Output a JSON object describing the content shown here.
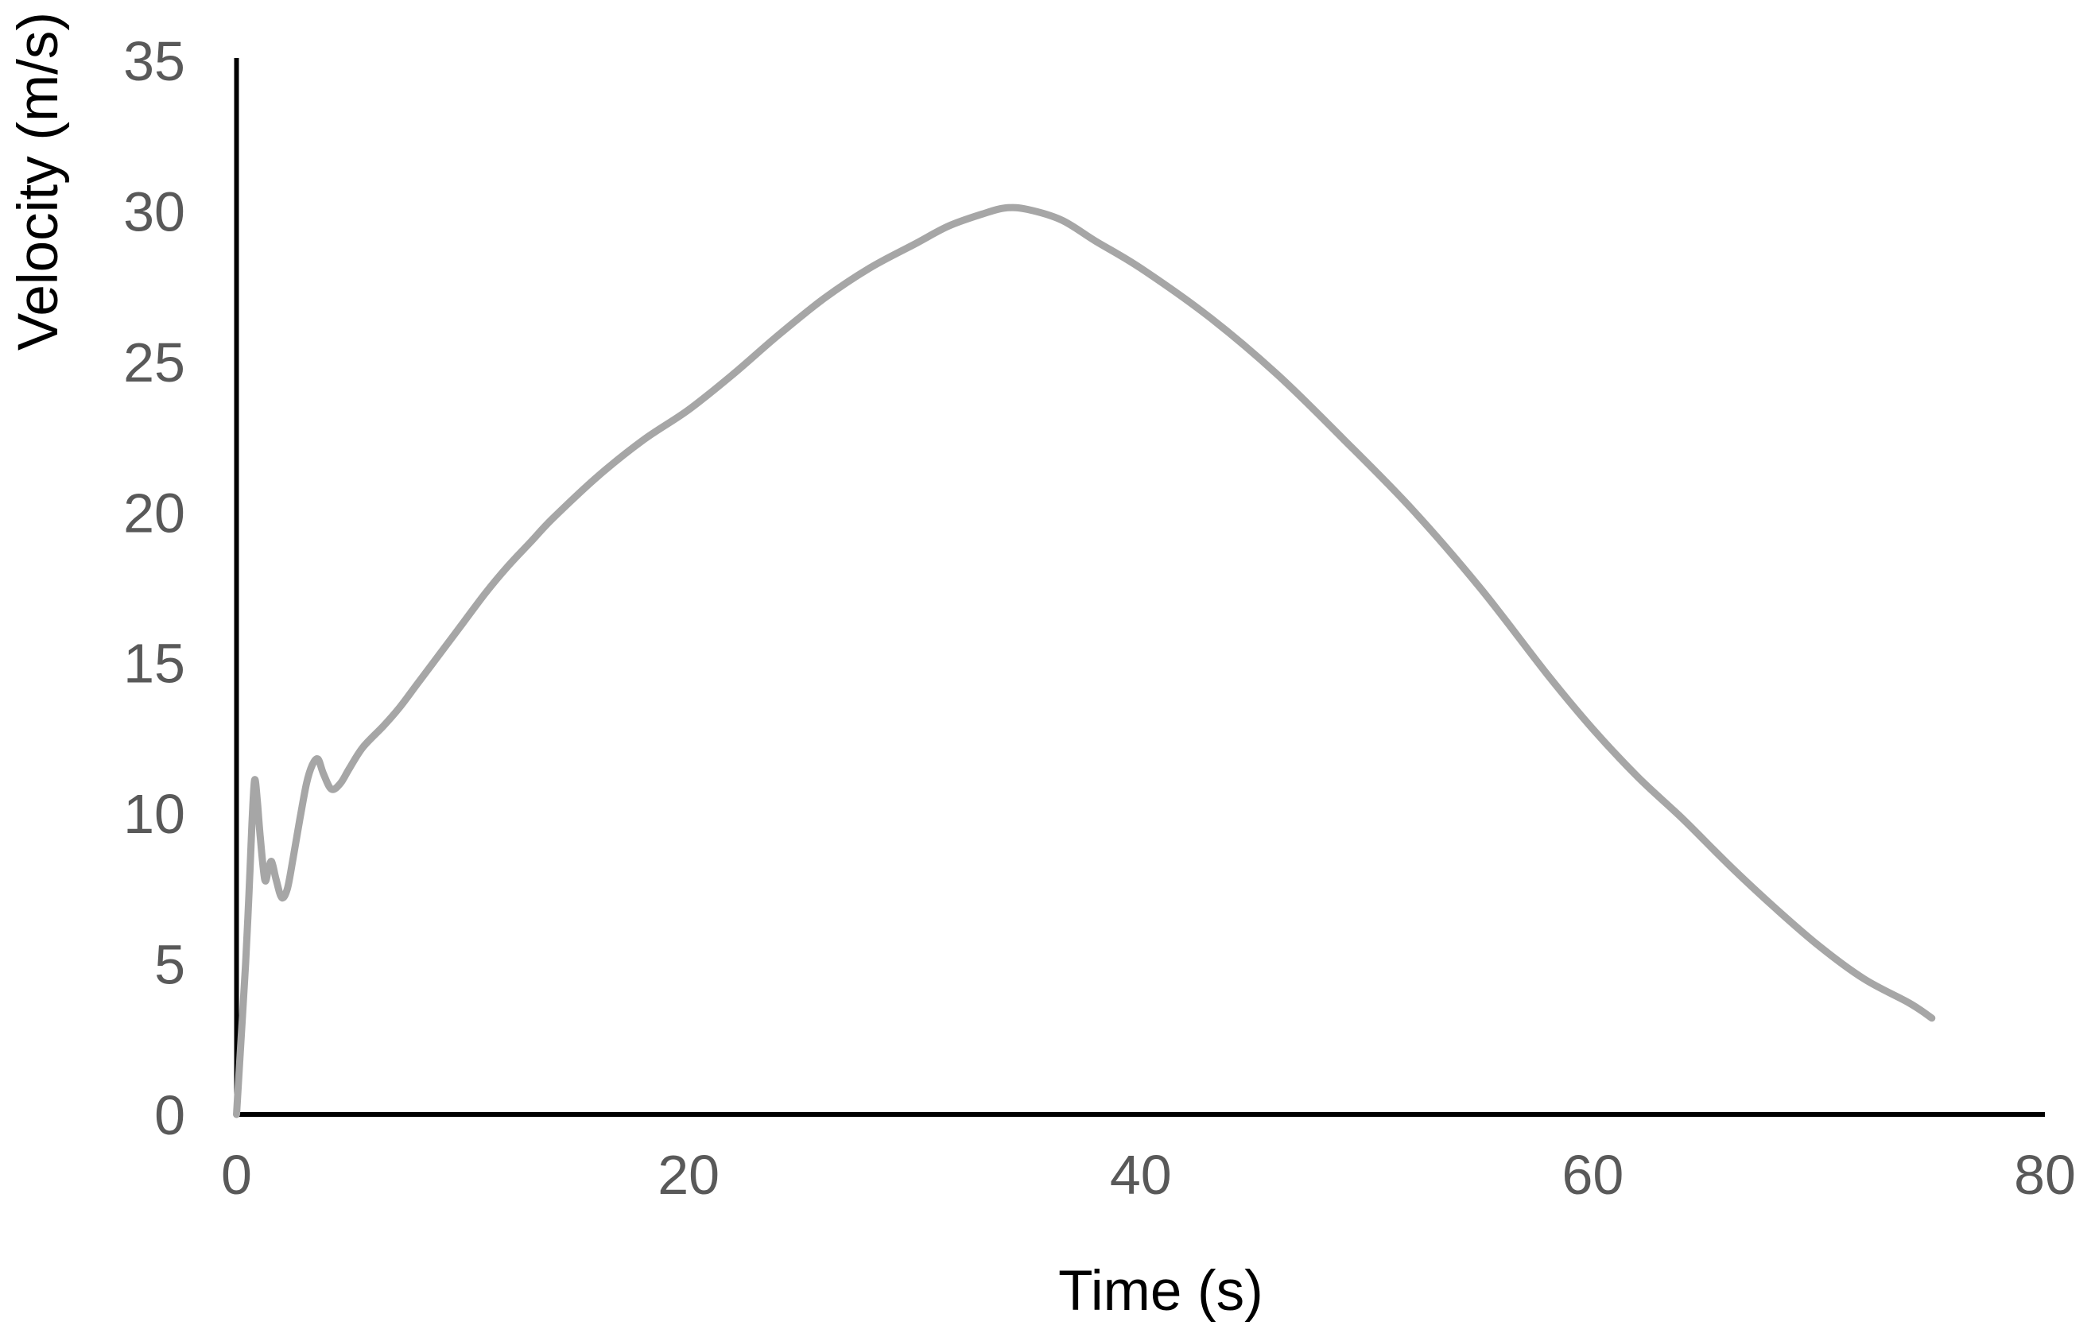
{
  "page": {
    "background_color": "#ffffff"
  },
  "chart_data": {
    "type": "line",
    "title": "",
    "xlabel": "Time (s)",
    "ylabel": "Velocity (m/s)",
    "xlim": [
      0,
      80
    ],
    "ylim": [
      0,
      35
    ],
    "x_ticks": [
      0,
      20,
      40,
      60,
      80
    ],
    "y_ticks": [
      0,
      5,
      10,
      15,
      20,
      25,
      30,
      35
    ],
    "grid": false,
    "legend_position": "none",
    "axis_color": "#000000",
    "tick_label_color": "#595959",
    "axis_title_color": "#000000",
    "series": [
      {
        "name": "Velocity",
        "color": "#a6a6a6",
        "stroke_width": 9,
        "points": [
          [
            0,
            0
          ],
          [
            0.2,
            2.5
          ],
          [
            0.4,
            5.0
          ],
          [
            0.55,
            7.3
          ],
          [
            0.68,
            9.6
          ],
          [
            0.8,
            11.1
          ],
          [
            0.92,
            10.4
          ],
          [
            1.05,
            9.2
          ],
          [
            1.25,
            7.8
          ],
          [
            1.4,
            8.1
          ],
          [
            1.55,
            8.4
          ],
          [
            1.75,
            7.8
          ],
          [
            2.0,
            7.2
          ],
          [
            2.25,
            7.5
          ],
          [
            2.5,
            8.5
          ],
          [
            2.8,
            9.8
          ],
          [
            3.1,
            11.0
          ],
          [
            3.35,
            11.6
          ],
          [
            3.6,
            11.8
          ],
          [
            3.85,
            11.3
          ],
          [
            4.2,
            10.8
          ],
          [
            4.6,
            11.0
          ],
          [
            5.0,
            11.5
          ],
          [
            5.6,
            12.2
          ],
          [
            6.5,
            12.9
          ],
          [
            7.2,
            13.5
          ],
          [
            8,
            14.3
          ],
          [
            9,
            15.3
          ],
          [
            10,
            16.3
          ],
          [
            11,
            17.3
          ],
          [
            12,
            18.2
          ],
          [
            13,
            19.0
          ],
          [
            14,
            19.8
          ],
          [
            16,
            21.2
          ],
          [
            18,
            22.4
          ],
          [
            20,
            23.4
          ],
          [
            22,
            24.6
          ],
          [
            24,
            25.9
          ],
          [
            26,
            27.1
          ],
          [
            28,
            28.1
          ],
          [
            30,
            28.9
          ],
          [
            31.5,
            29.5
          ],
          [
            33,
            29.9
          ],
          [
            34,
            30.1
          ],
          [
            35,
            30.05
          ],
          [
            36.5,
            29.7
          ],
          [
            38,
            29.0
          ],
          [
            40,
            28.1
          ],
          [
            43,
            26.5
          ],
          [
            46,
            24.6
          ],
          [
            49,
            22.4
          ],
          [
            52,
            20.1
          ],
          [
            55,
            17.5
          ],
          [
            58,
            14.6
          ],
          [
            60,
            12.8
          ],
          [
            62,
            11.2
          ],
          [
            64,
            9.8
          ],
          [
            66,
            8.3
          ],
          [
            68,
            6.9
          ],
          [
            70,
            5.6
          ],
          [
            72,
            4.5
          ],
          [
            74,
            3.7
          ],
          [
            75,
            3.2
          ]
        ]
      }
    ]
  }
}
